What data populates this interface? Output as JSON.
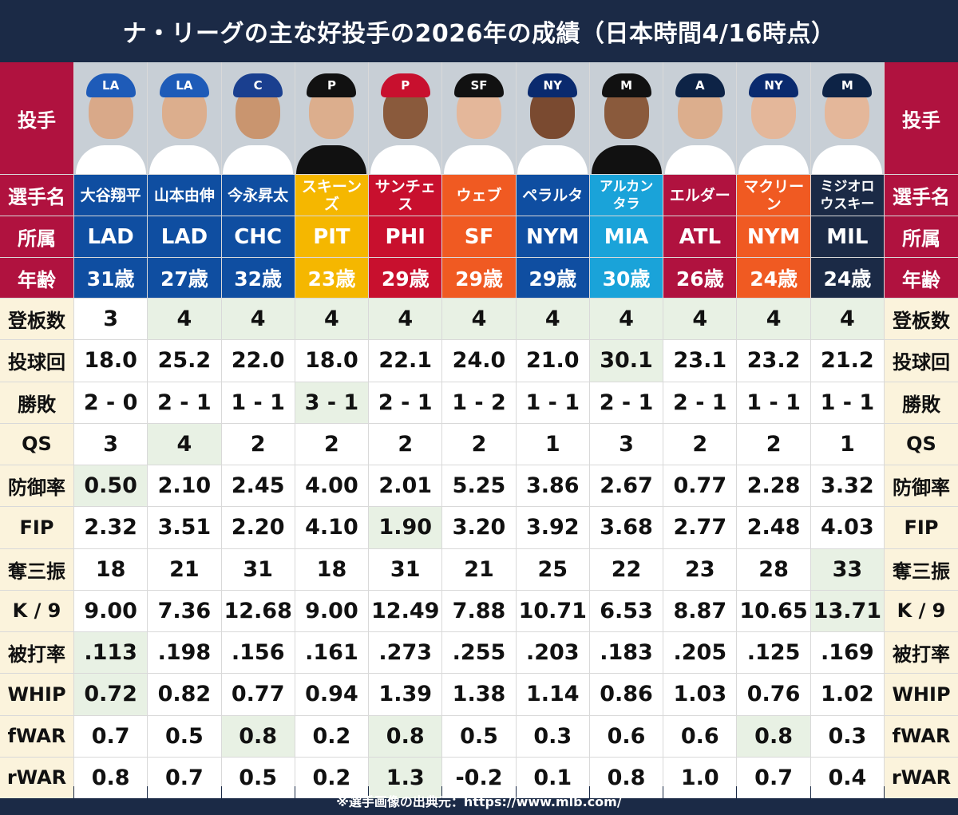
{
  "title": "ナ・リーグの主な好投手の2026年の成績（日本時間4/16時点）",
  "footer": "※選手画像の出典元：https://www.mlb.com/",
  "labels": {
    "photo": "投手",
    "name": "選手名",
    "team": "所属",
    "age": "年齢",
    "stats": [
      "登板数",
      "投球回",
      "勝敗",
      "QS",
      "防御率",
      "FIP",
      "奪三振",
      "K / 9",
      "被打率",
      "WHIP",
      "fWAR",
      "rWAR"
    ]
  },
  "colors": {
    "header_red": "#b0123f",
    "stat_label_bg": "#fbf3dc",
    "highlight_bg": "#e8f1e4",
    "background": "#1b2a46"
  },
  "players": [
    {
      "name": "大谷翔平",
      "team": "LAD",
      "age": "31歳",
      "color": "#0f4ea1",
      "cap_icon": "dodgers-la-logo",
      "cap_text": "LA",
      "cap_color": "#1e5bb8",
      "face": "#d9a989",
      "shirt": "#ffffff",
      "stats": [
        "3",
        "18.0",
        "2 - 0",
        "3",
        "0.50",
        "2.32",
        "18",
        "9.00",
        ".113",
        "0.72",
        "0.7",
        "0.8"
      ],
      "hl": [
        4,
        8,
        9
      ]
    },
    {
      "name": "山本由伸",
      "team": "LAD",
      "age": "27歳",
      "color": "#0f4ea1",
      "cap_icon": "dodgers-la-logo",
      "cap_text": "LA",
      "cap_color": "#1e5bb8",
      "face": "#dcae8d",
      "shirt": "#ffffff",
      "stats": [
        "4",
        "25.2",
        "2 - 1",
        "4",
        "2.10",
        "3.51",
        "21",
        "7.36",
        ".198",
        "0.82",
        "0.5",
        "0.7"
      ],
      "hl": [
        0,
        3
      ]
    },
    {
      "name": "今永昇太",
      "team": "CHC",
      "age": "32歳",
      "color": "#0f4ea1",
      "cap_icon": "cubs-c-logo",
      "cap_text": "C",
      "cap_color": "#1a3f8f",
      "face": "#c9956f",
      "shirt": "#ffffff",
      "stats": [
        "4",
        "22.0",
        "1 - 1",
        "2",
        "2.45",
        "2.20",
        "31",
        "12.68",
        ".156",
        "0.77",
        "0.8",
        "0.5"
      ],
      "hl": [
        0,
        10
      ]
    },
    {
      "name": "スキーンズ",
      "team": "PIT",
      "age": "23歳",
      "color": "#f5b700",
      "cap_icon": "pirates-p-logo",
      "cap_text": "P",
      "cap_color": "#111111",
      "face": "#dcae8d",
      "shirt": "#111111",
      "stats": [
        "4",
        "18.0",
        "3 - 1",
        "2",
        "4.00",
        "4.10",
        "18",
        "9.00",
        ".161",
        "0.94",
        "0.2",
        "0.2"
      ],
      "hl": [
        0,
        2
      ]
    },
    {
      "name": "サンチェス",
      "team": "PHI",
      "age": "29歳",
      "color": "#c8102e",
      "cap_icon": "phillies-p-logo",
      "cap_text": "P",
      "cap_color": "#c8102e",
      "face": "#8a5a3c",
      "shirt": "#ffffff",
      "stats": [
        "4",
        "22.1",
        "2 - 1",
        "2",
        "2.01",
        "1.90",
        "31",
        "12.49",
        ".273",
        "1.39",
        "0.8",
        "1.3"
      ],
      "hl": [
        0,
        5,
        10,
        11
      ]
    },
    {
      "name": "ウェブ",
      "team": "SF",
      "age": "29歳",
      "color": "#f05a22",
      "cap_icon": "giants-sf-logo",
      "cap_text": "SF",
      "cap_color": "#111111",
      "face": "#e4b79a",
      "shirt": "#ffffff",
      "stats": [
        "4",
        "24.0",
        "1 - 2",
        "2",
        "5.25",
        "3.20",
        "21",
        "7.88",
        ".255",
        "1.38",
        "0.5",
        "-0.2"
      ],
      "hl": [
        0
      ]
    },
    {
      "name": "ペラルタ",
      "team": "NYM",
      "age": "29歳",
      "color": "#0f4ea1",
      "cap_icon": "mets-ny-logo",
      "cap_text": "NY",
      "cap_color": "#0a2a6e",
      "face": "#7a4a30",
      "shirt": "#ffffff",
      "stats": [
        "4",
        "21.0",
        "1 - 1",
        "1",
        "3.86",
        "3.92",
        "25",
        "10.71",
        ".203",
        "1.14",
        "0.3",
        "0.1"
      ],
      "hl": [
        0
      ]
    },
    {
      "name": "アルカンタラ",
      "team": "MIA",
      "age": "30歳",
      "color": "#1aa3d9",
      "cap_icon": "marlins-m-logo",
      "cap_text": "M",
      "cap_color": "#111111",
      "face": "#8a5a3c",
      "shirt": "#111111",
      "stats": [
        "4",
        "30.1",
        "2 - 1",
        "3",
        "2.67",
        "3.68",
        "22",
        "6.53",
        ".183",
        "0.86",
        "0.6",
        "0.8"
      ],
      "hl": [
        0,
        1
      ]
    },
    {
      "name": "エルダー",
      "team": "ATL",
      "age": "26歳",
      "color": "#b0123f",
      "cap_icon": "braves-a-logo",
      "cap_text": "A",
      "cap_color": "#0d2346",
      "face": "#dcae8d",
      "shirt": "#ffffff",
      "stats": [
        "4",
        "23.1",
        "2 - 1",
        "2",
        "0.77",
        "2.77",
        "23",
        "8.87",
        ".205",
        "1.03",
        "0.6",
        "1.0"
      ],
      "hl": [
        0
      ]
    },
    {
      "name": "マクリーン",
      "team": "NYM",
      "age": "24歳",
      "color": "#f05a22",
      "cap_icon": "mets-ny-logo",
      "cap_text": "NY",
      "cap_color": "#0a2a6e",
      "face": "#e4b79a",
      "shirt": "#ffffff",
      "stats": [
        "4",
        "23.2",
        "1 - 1",
        "2",
        "2.28",
        "2.48",
        "28",
        "10.65",
        ".125",
        "0.76",
        "0.8",
        "0.7"
      ],
      "hl": [
        0,
        10
      ]
    },
    {
      "name": "ミジオロウスキー",
      "team": "MIL",
      "age": "24歳",
      "color": "#1b2a46",
      "cap_icon": "brewers-logo",
      "cap_text": "M",
      "cap_color": "#0d2346",
      "face": "#e4b79a",
      "shirt": "#ffffff",
      "stats": [
        "4",
        "21.2",
        "1 - 1",
        "1",
        "3.32",
        "4.03",
        "33",
        "13.71",
        ".169",
        "1.02",
        "0.3",
        "0.4"
      ],
      "hl": [
        0,
        6,
        7
      ]
    }
  ]
}
